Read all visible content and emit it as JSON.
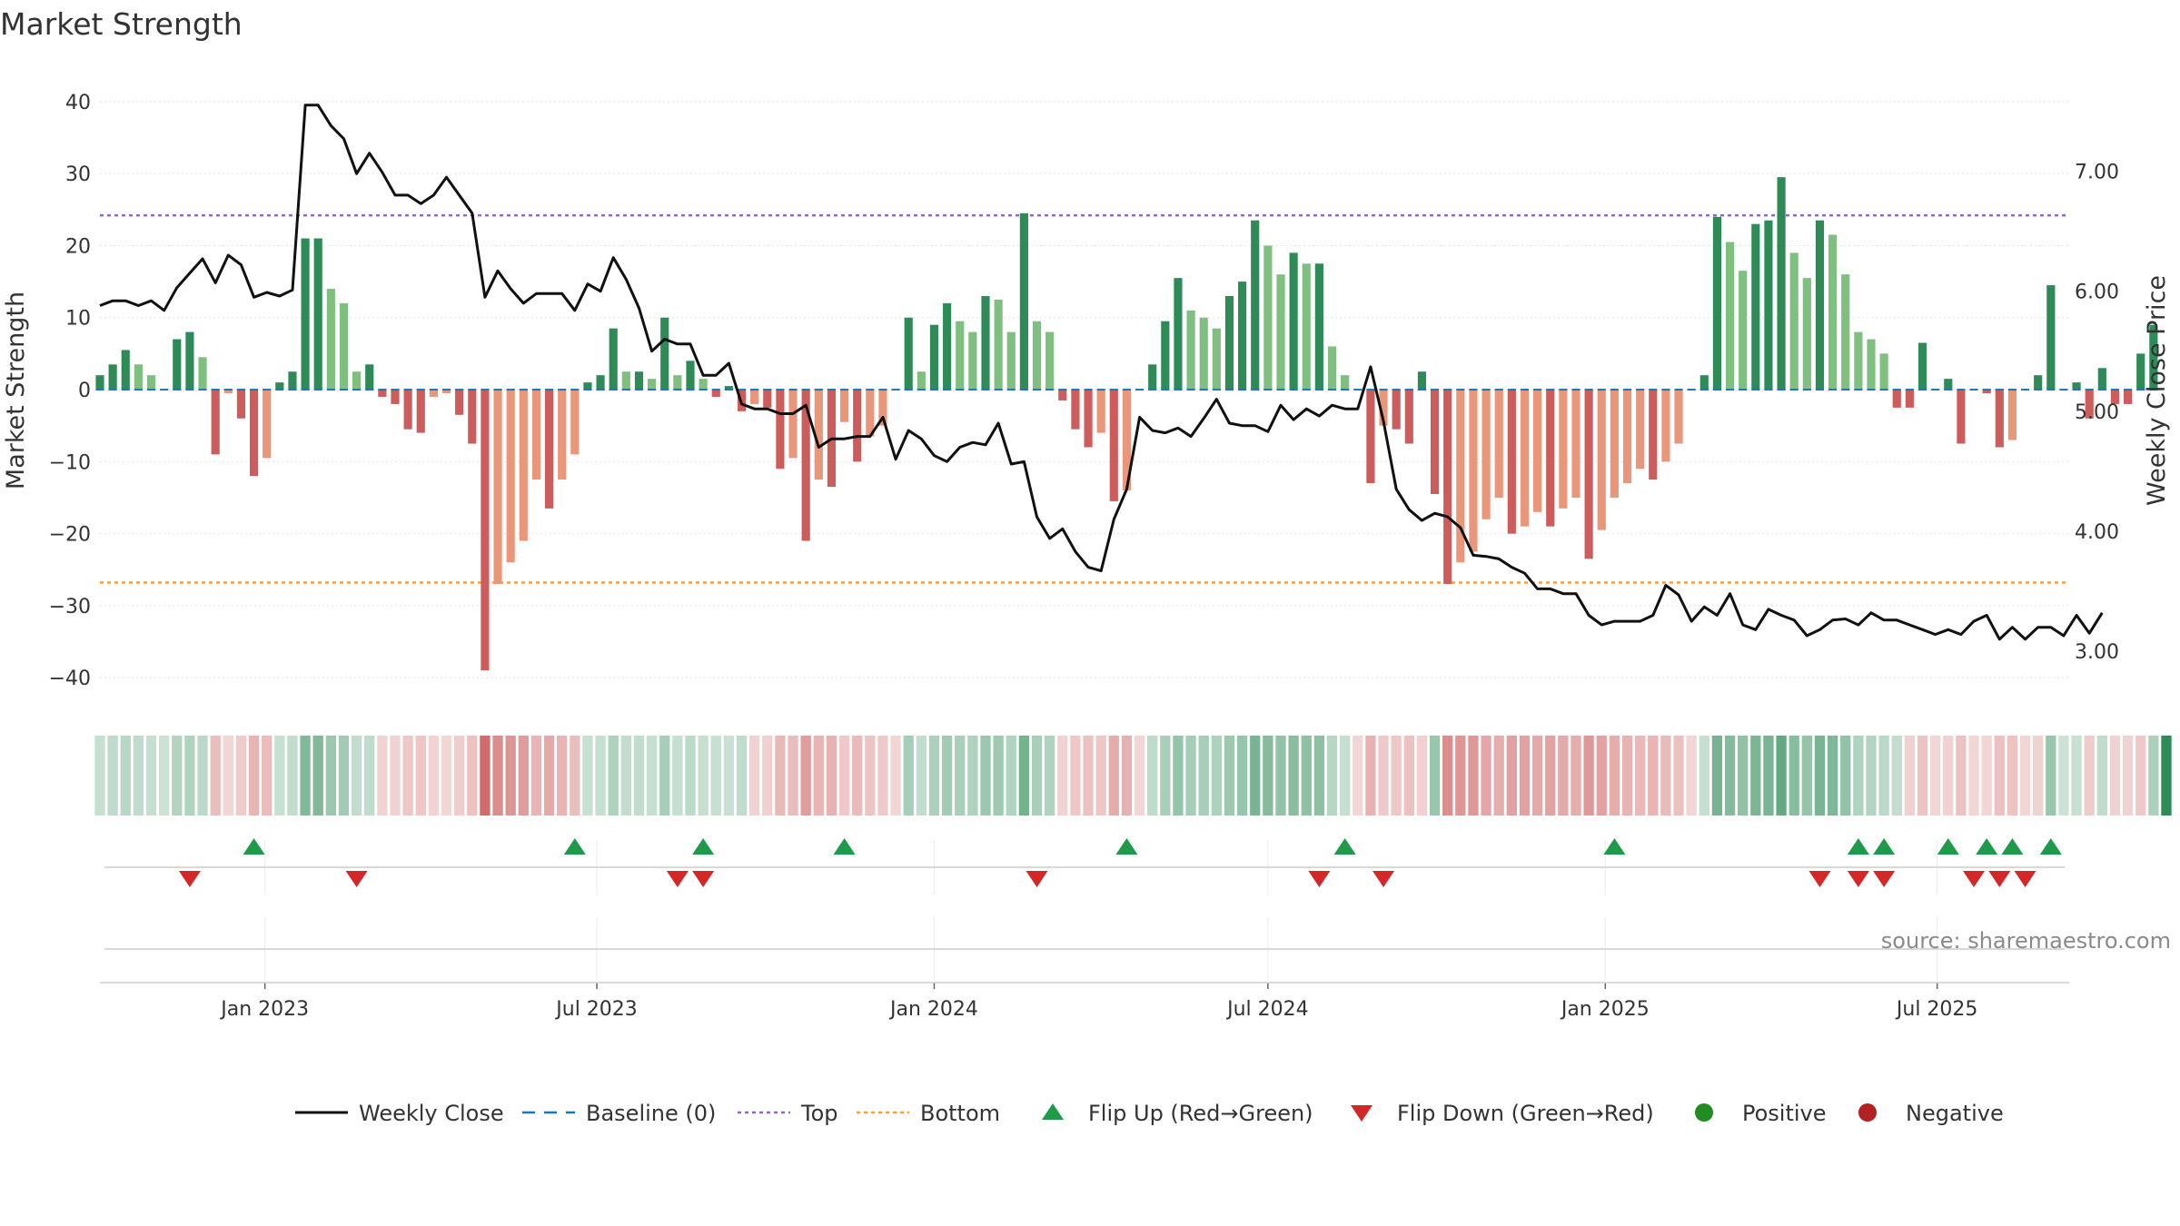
{
  "chart_data": {
    "type": "bar",
    "title": "Market Strength",
    "ylabel_left": "Market Strength",
    "ylabel_right": "Weekly Close Price",
    "ylim_left": [
      -43,
      42
    ],
    "ylim_right": [
      2.6,
      7.7
    ],
    "yticks_left": [
      40,
      30,
      20,
      10,
      0,
      -10,
      -20,
      -30,
      -40
    ],
    "yticks_left_labels": [
      "40",
      "30",
      "20",
      "10",
      "0",
      "−10",
      "−20",
      "−30",
      "−40"
    ],
    "yticks_right": [
      7.0,
      6.0,
      5.0,
      4.0,
      3.0
    ],
    "yticks_right_labels": [
      "7.00",
      "6.00",
      "5.00",
      "4.00",
      "3.00"
    ],
    "x_range": [
      "2022-10-03",
      "2025-09-11"
    ],
    "x_ticks": [
      {
        "date": "2023-01-01",
        "label": "Jan 2023"
      },
      {
        "date": "2023-07-01",
        "label": "Jul 2023"
      },
      {
        "date": "2024-01-01",
        "label": "Jan 2024"
      },
      {
        "date": "2024-07-01",
        "label": "Jul 2024"
      },
      {
        "date": "2025-01-01",
        "label": "Jan 2025"
      },
      {
        "date": "2025-07-01",
        "label": "Jul 2025"
      }
    ],
    "top_threshold": 24.2,
    "bottom_threshold": -26.8,
    "baseline": 0,
    "start_date": "2022-10-03",
    "interval_days": 7,
    "market_strength": [
      2,
      3.5,
      5.5,
      3.5,
      2,
      0,
      7,
      8,
      4.5,
      -9,
      -0.5,
      -4,
      -12,
      -9.5,
      1,
      2.5,
      21,
      21,
      14,
      12,
      2.5,
      3.5,
      -1,
      -2,
      -5.5,
      -6,
      -1,
      -0.5,
      -3.5,
      -7.5,
      -39,
      -27,
      -24,
      -21,
      -12.5,
      -16.5,
      -12.5,
      -9,
      1,
      2,
      8.5,
      2.5,
      2.5,
      1.5,
      10,
      2,
      4,
      1.5,
      -1,
      0.5,
      -3,
      -2,
      -2.5,
      -11,
      -9.5,
      -21,
      -12.5,
      -13.5,
      -4.5,
      -10,
      -6.5,
      -5,
      0,
      10,
      2.5,
      9,
      12,
      9.5,
      8,
      13,
      12.5,
      8,
      24.5,
      9.5,
      8,
      -1.5,
      -5.5,
      -8,
      -6,
      -15.5,
      -14,
      0,
      3.5,
      9.5,
      15.5,
      11,
      10,
      8.5,
      13,
      15,
      23.5,
      20,
      16,
      19,
      17.5,
      17.5,
      6,
      2,
      0,
      -13,
      -5,
      -5.5,
      -7.5,
      2.5,
      -14.5,
      -27,
      -24,
      -22.5,
      -18,
      -15,
      -20,
      -19,
      -17,
      -19,
      -16.5,
      -15,
      -23.5,
      -19.5,
      -15,
      -13,
      -11,
      -12.5,
      -10,
      -7.5,
      0,
      2,
      24,
      20.5,
      16.5,
      23,
      23.5,
      29.5,
      19,
      15.5,
      23.5,
      21.5,
      16,
      8,
      7,
      5,
      -2.5,
      -2.5,
      6.5,
      0,
      1.5,
      -7.5,
      0,
      -0.5,
      -8,
      -7,
      0,
      2,
      14.5,
      0,
      1,
      -4,
      3,
      -2,
      -2,
      5,
      9
    ],
    "weekly_close": [
      5.88,
      5.92,
      5.92,
      5.88,
      5.92,
      5.84,
      6.03,
      6.15,
      6.27,
      6.07,
      6.3,
      6.22,
      5.95,
      5.99,
      5.96,
      6.01,
      7.55,
      7.55,
      7.38,
      7.27,
      6.98,
      7.15,
      6.99,
      6.8,
      6.8,
      6.73,
      6.8,
      6.95,
      6.8,
      6.65,
      5.95,
      6.17,
      6.02,
      5.9,
      5.98,
      5.98,
      5.98,
      5.84,
      6.06,
      6.0,
      6.28,
      6.1,
      5.86,
      5.5,
      5.6,
      5.56,
      5.56,
      5.3,
      5.3,
      5.4,
      5.06,
      5.02,
      5.02,
      4.98,
      4.98,
      5.05,
      4.7,
      4.77,
      4.77,
      4.79,
      4.79,
      4.95,
      4.6,
      4.84,
      4.77,
      4.63,
      4.58,
      4.7,
      4.74,
      4.72,
      4.9,
      4.56,
      4.58,
      4.12,
      3.94,
      4.02,
      3.83,
      3.7,
      3.67,
      4.1,
      4.35,
      4.95,
      4.84,
      4.82,
      4.86,
      4.79,
      4.94,
      5.1,
      4.9,
      4.88,
      4.88,
      4.83,
      5.05,
      4.93,
      5.02,
      4.96,
      5.05,
      5.02,
      5.02,
      5.37,
      4.92,
      4.35,
      4.18,
      4.09,
      4.15,
      4.12,
      4.03,
      3.8,
      3.79,
      3.77,
      3.7,
      3.65,
      3.52,
      3.52,
      3.48,
      3.48,
      3.3,
      3.22,
      3.25,
      3.25,
      3.25,
      3.3,
      3.55,
      3.47,
      3.25,
      3.37,
      3.3,
      3.48,
      3.22,
      3.18,
      3.35,
      3.3,
      3.26,
      3.13,
      3.18,
      3.26,
      3.27,
      3.22,
      3.32,
      3.26,
      3.26,
      3.22,
      3.18,
      3.14,
      3.18,
      3.14,
      3.25,
      3.3,
      3.1,
      3.2,
      3.1,
      3.2,
      3.2,
      3.13,
      3.3,
      3.15,
      3.32
    ],
    "regime": [
      "pos",
      "pos",
      "pos",
      "pos",
      "pos",
      "pos",
      "pos",
      "pos",
      "pos",
      "neg",
      "neg",
      "neg",
      "neg",
      "neg",
      "pos",
      "pos",
      "pos",
      "pos",
      "pos",
      "pos",
      "pos",
      "pos",
      "neg",
      "neg",
      "neg",
      "neg",
      "neg",
      "neg",
      "neg",
      "neg",
      "neg",
      "neg",
      "neg",
      "neg",
      "neg",
      "neg",
      "neg",
      "neg",
      "pos",
      "pos",
      "pos",
      "pos",
      "pos",
      "pos",
      "pos",
      "pos",
      "pos",
      "pos",
      "pos",
      "pos",
      "pos",
      "neg",
      "neg",
      "neg",
      "neg",
      "neg",
      "neg",
      "neg",
      "neg",
      "neg",
      "neg",
      "neg",
      "neg",
      "pos",
      "pos",
      "pos",
      "pos",
      "pos",
      "pos",
      "pos",
      "pos",
      "pos",
      "pos",
      "pos",
      "pos",
      "neg",
      "neg",
      "neg",
      "neg",
      "neg",
      "neg",
      "neg",
      "pos",
      "pos",
      "pos",
      "pos",
      "pos",
      "pos",
      "pos",
      "pos",
      "pos",
      "pos",
      "pos",
      "pos",
      "pos",
      "pos",
      "pos",
      "pos",
      "neg",
      "neg",
      "neg",
      "neg",
      "neg",
      "neg",
      "pos",
      "neg",
      "neg",
      "neg",
      "neg",
      "neg",
      "neg",
      "neg",
      "neg",
      "neg",
      "neg",
      "neg",
      "neg",
      "neg",
      "neg",
      "neg",
      "neg",
      "neg",
      "neg",
      "neg",
      "neg",
      "pos",
      "pos",
      "pos",
      "pos",
      "pos",
      "pos",
      "pos",
      "pos",
      "pos",
      "pos",
      "pos",
      "pos",
      "pos",
      "pos",
      "pos",
      "pos",
      "neg",
      "neg",
      "neg",
      "neg",
      "neg",
      "neg",
      "neg",
      "neg",
      "neg",
      "neg",
      "neg",
      "pos",
      "pos",
      "pos",
      "neg",
      "pos",
      "neg",
      "neg",
      "neg",
      "pos",
      "pos"
    ],
    "flip_up_dates": [
      "2022-12-26",
      "2023-06-19",
      "2023-08-28",
      "2023-11-13",
      "2024-04-15",
      "2024-08-12",
      "2025-01-06",
      "2025-05-19",
      "2025-06-02",
      "2025-07-07",
      "2025-07-28",
      "2025-08-11",
      "2025-09-01"
    ],
    "flip_down_dates": [
      "2022-11-21",
      "2023-02-20",
      "2023-08-14",
      "2023-08-28",
      "2024-02-26",
      "2024-07-29",
      "2024-09-02",
      "2025-04-28",
      "2025-05-19",
      "2025-06-02",
      "2025-07-21",
      "2025-08-04",
      "2025-08-18"
    ],
    "colors": {
      "strong_green": "#2e8b57",
      "light_green": "#7fbf7f",
      "strong_red": "#cd5c5c",
      "light_red": "#e9967a",
      "close_line": "#111111",
      "baseline": "#1f77b4",
      "top": "#9467bd",
      "bottom": "#ff9f3a",
      "flip_up": "#1e9a4a",
      "flip_down": "#d62728",
      "positive_dot": "#228b22",
      "negative_dot": "#b22222"
    },
    "legend": [
      {
        "key": "close",
        "label": "Weekly Close"
      },
      {
        "key": "baseline",
        "label": "Baseline (0)"
      },
      {
        "key": "top",
        "label": "Top"
      },
      {
        "key": "bottom",
        "label": "Bottom"
      },
      {
        "key": "flip_up",
        "label": "Flip Up (Red→Green)"
      },
      {
        "key": "flip_down",
        "label": "Flip Down (Green→Red)"
      },
      {
        "key": "positive",
        "label": "Positive"
      },
      {
        "key": "negative",
        "label": "Negative"
      }
    ]
  },
  "source": "source: sharemaestro.com"
}
